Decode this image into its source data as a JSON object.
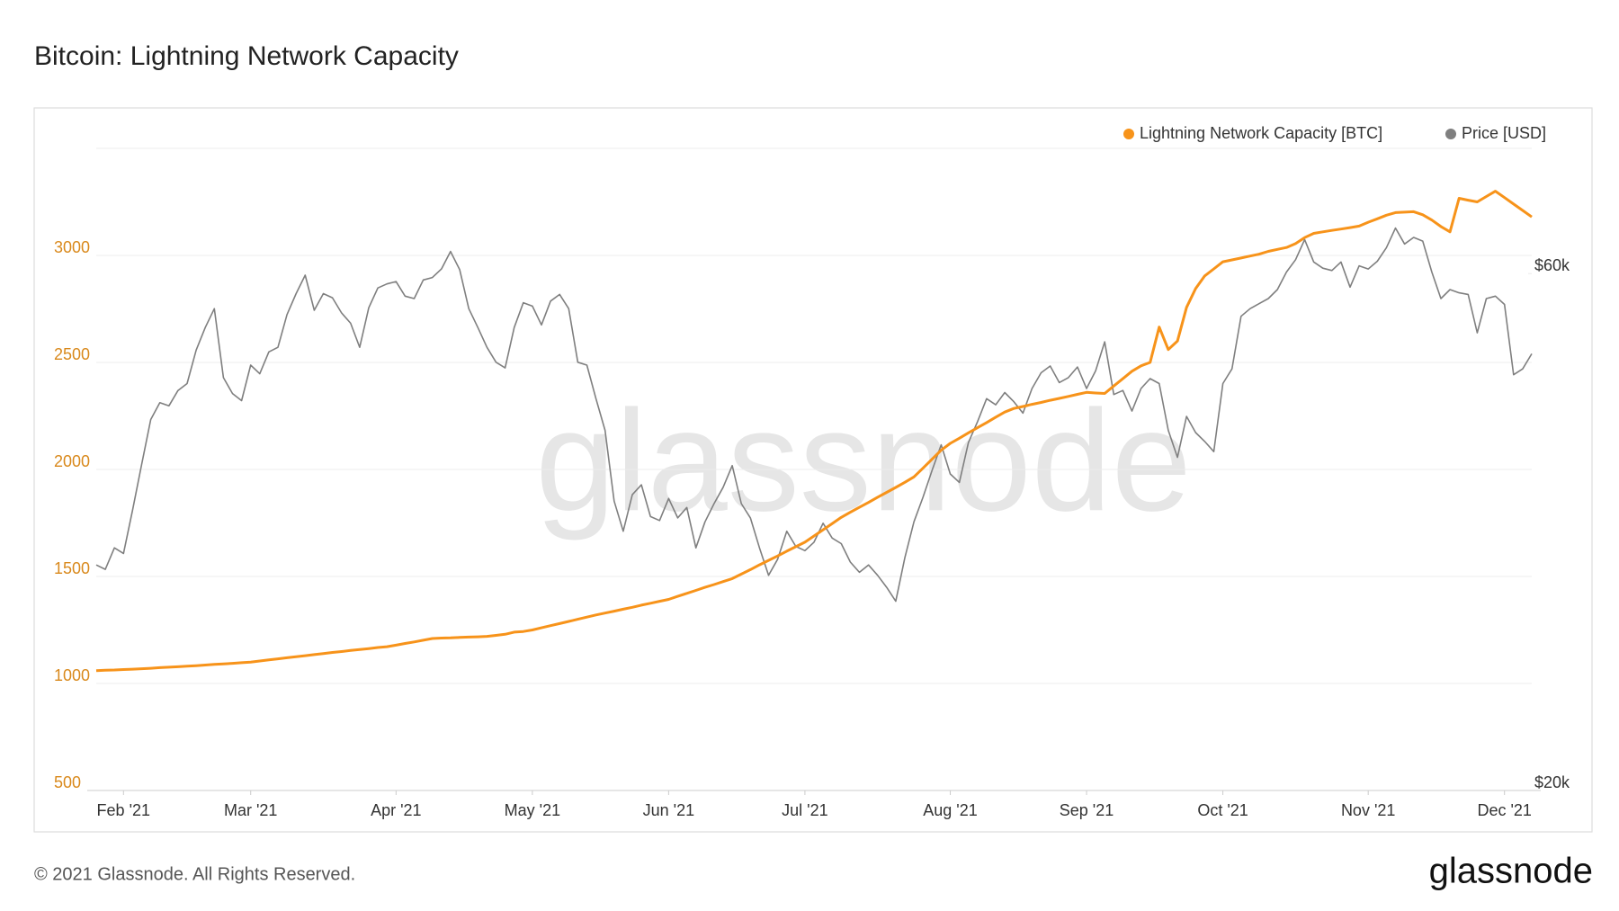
{
  "chart_data": {
    "type": "line",
    "title": "Bitcoin: Lightning Network Capacity",
    "watermark": "glassnode",
    "categories": [
      null,
      null,
      null,
      "Feb '21",
      null,
      null,
      null,
      null,
      null,
      null,
      null,
      null,
      null,
      null,
      null,
      null,
      null,
      "Mar '21",
      null,
      null,
      null,
      null,
      null,
      null,
      null,
      null,
      null,
      null,
      null,
      null,
      null,
      null,
      null,
      "Apr '21",
      null,
      null,
      null,
      null,
      null,
      null,
      null,
      null,
      null,
      null,
      null,
      null,
      null,
      null,
      "May '21",
      null,
      null,
      null,
      null,
      null,
      null,
      null,
      null,
      null,
      null,
      null,
      null,
      null,
      null,
      "Jun '21",
      null,
      null,
      null,
      null,
      null,
      null,
      null,
      null,
      null,
      null,
      null,
      null,
      null,
      null,
      "Jul '21",
      null,
      null,
      null,
      null,
      null,
      null,
      null,
      null,
      null,
      null,
      null,
      null,
      null,
      null,
      null,
      "Aug '21",
      null,
      null,
      null,
      null,
      null,
      null,
      null,
      null,
      null,
      null,
      null,
      null,
      null,
      null,
      "Sep '21",
      null,
      null,
      null,
      null,
      null,
      null,
      null,
      null,
      null,
      null,
      null,
      null,
      null,
      null,
      "Oct '21",
      null,
      null,
      null,
      null,
      null,
      null,
      null,
      null,
      null,
      null,
      null,
      null,
      null,
      null,
      null,
      "Nov '21",
      null,
      null,
      null,
      null,
      null,
      null,
      null,
      null,
      null,
      null,
      null,
      null,
      null,
      null,
      "Dec '21",
      null,
      null,
      null
    ],
    "series": [
      {
        "name": "Lightning Network Capacity [BTC]",
        "color": "#f7931a",
        "axis": "y",
        "values": [
          1060,
          1062,
          1063,
          1065,
          1067,
          1069,
          1071,
          1074,
          1076,
          1078,
          1081,
          1083,
          1086,
          1089,
          1091,
          1094,
          1097,
          1100,
          1105,
          1110,
          1115,
          1120,
          1125,
          1130,
          1135,
          1140,
          1145,
          1149,
          1154,
          1159,
          1163,
          1168,
          1172,
          1179,
          1187,
          1194,
          1202,
          1210,
          1212,
          1213,
          1215,
          1217,
          1218,
          1220,
          1225,
          1230,
          1240,
          1243,
          1250,
          1260,
          1270,
          1280,
          1290,
          1300,
          1310,
          1320,
          1329,
          1338,
          1347,
          1356,
          1366,
          1375,
          1384,
          1393,
          1407,
          1421,
          1435,
          1449,
          1462,
          1476,
          1490,
          1511,
          1532,
          1554,
          1575,
          1596,
          1618,
          1639,
          1660,
          1689,
          1718,
          1747,
          1776,
          1800,
          1823,
          1846,
          1870,
          1893,
          1916,
          1940,
          1965,
          2006,
          2048,
          2090,
          2122,
          2146,
          2171,
          2195,
          2219,
          2244,
          2268,
          2285,
          2294,
          2304,
          2313,
          2323,
          2332,
          2341,
          2351,
          2360,
          2357,
          2355,
          2390,
          2424,
          2459,
          2484,
          2500,
          2665,
          2560,
          2600,
          2757,
          2845,
          2904,
          2937,
          2970,
          2979,
          2988,
          2997,
          3006,
          3019,
          3028,
          3037,
          3055,
          3083,
          3103,
          3110,
          3117,
          3123,
          3130,
          3137,
          3155,
          3171,
          3188,
          3200,
          3202,
          3204,
          3190,
          3165,
          3135,
          3110,
          3267,
          3258,
          3250,
          3275,
          3300,
          3270,
          3240,
          3210,
          3180
        ]
      },
      {
        "name": "Price [USD]",
        "color": "#7f7f7f",
        "axis": "y2",
        "values": [
          32300,
          32000,
          33500,
          33100,
          36300,
          40000,
          44000,
          45600,
          45300,
          46800,
          47500,
          51000,
          53500,
          55700,
          48100,
          46500,
          45800,
          49400,
          48500,
          50800,
          51300,
          55000,
          57500,
          59800,
          55500,
          57500,
          57000,
          55200,
          54000,
          51300,
          55800,
          58200,
          58700,
          59000,
          57200,
          56900,
          59200,
          59500,
          60600,
          62900,
          60500,
          55700,
          53500,
          51300,
          49700,
          49100,
          53500,
          56400,
          56000,
          53800,
          56600,
          57400,
          55700,
          49700,
          49400,
          46000,
          43000,
          37000,
          34700,
          37500,
          38300,
          35800,
          35500,
          37200,
          35700,
          36500,
          33500,
          35400,
          36800,
          38100,
          39900,
          36800,
          35700,
          33500,
          31600,
          32700,
          34700,
          33600,
          33300,
          33900,
          35300,
          34200,
          33800,
          32500,
          31800,
          32300,
          31600,
          30800,
          29900,
          32800,
          35400,
          37300,
          39500,
          41700,
          39200,
          38500,
          41900,
          43800,
          46000,
          45400,
          46600,
          45700,
          44600,
          47000,
          48600,
          49300,
          47600,
          48100,
          49200,
          47000,
          48800,
          51900,
          46400,
          46800,
          44800,
          47000,
          48000,
          47500,
          43000,
          40600,
          44300,
          42800,
          42000,
          41100,
          47500,
          49000,
          54800,
          55700,
          56300,
          56900,
          58000,
          60200,
          61800,
          64500,
          61500,
          60700,
          60400,
          61500,
          58300,
          61000,
          60600,
          61600,
          63400,
          66100,
          63900,
          64800,
          64300,
          60200,
          56900,
          58000,
          57600,
          57400,
          52900,
          56900,
          57200,
          56200,
          48400,
          49000,
          50600
        ]
      }
    ],
    "ylim": [
      500,
      3500
    ],
    "yticks": [
      500,
      1000,
      1500,
      2000,
      2500,
      3000
    ],
    "ytick_color": "#d9891c",
    "y2lim": [
      20000,
      78300
    ],
    "y2log": true,
    "y2ticks": [
      {
        "value": 20000,
        "label": "$20k"
      },
      {
        "value": 60000,
        "label": "$60k"
      }
    ],
    "grid": true,
    "legend": "top-right"
  },
  "footer": {
    "copyright": "© 2021 Glassnode. All Rights Reserved.",
    "logo": "glassnode"
  }
}
